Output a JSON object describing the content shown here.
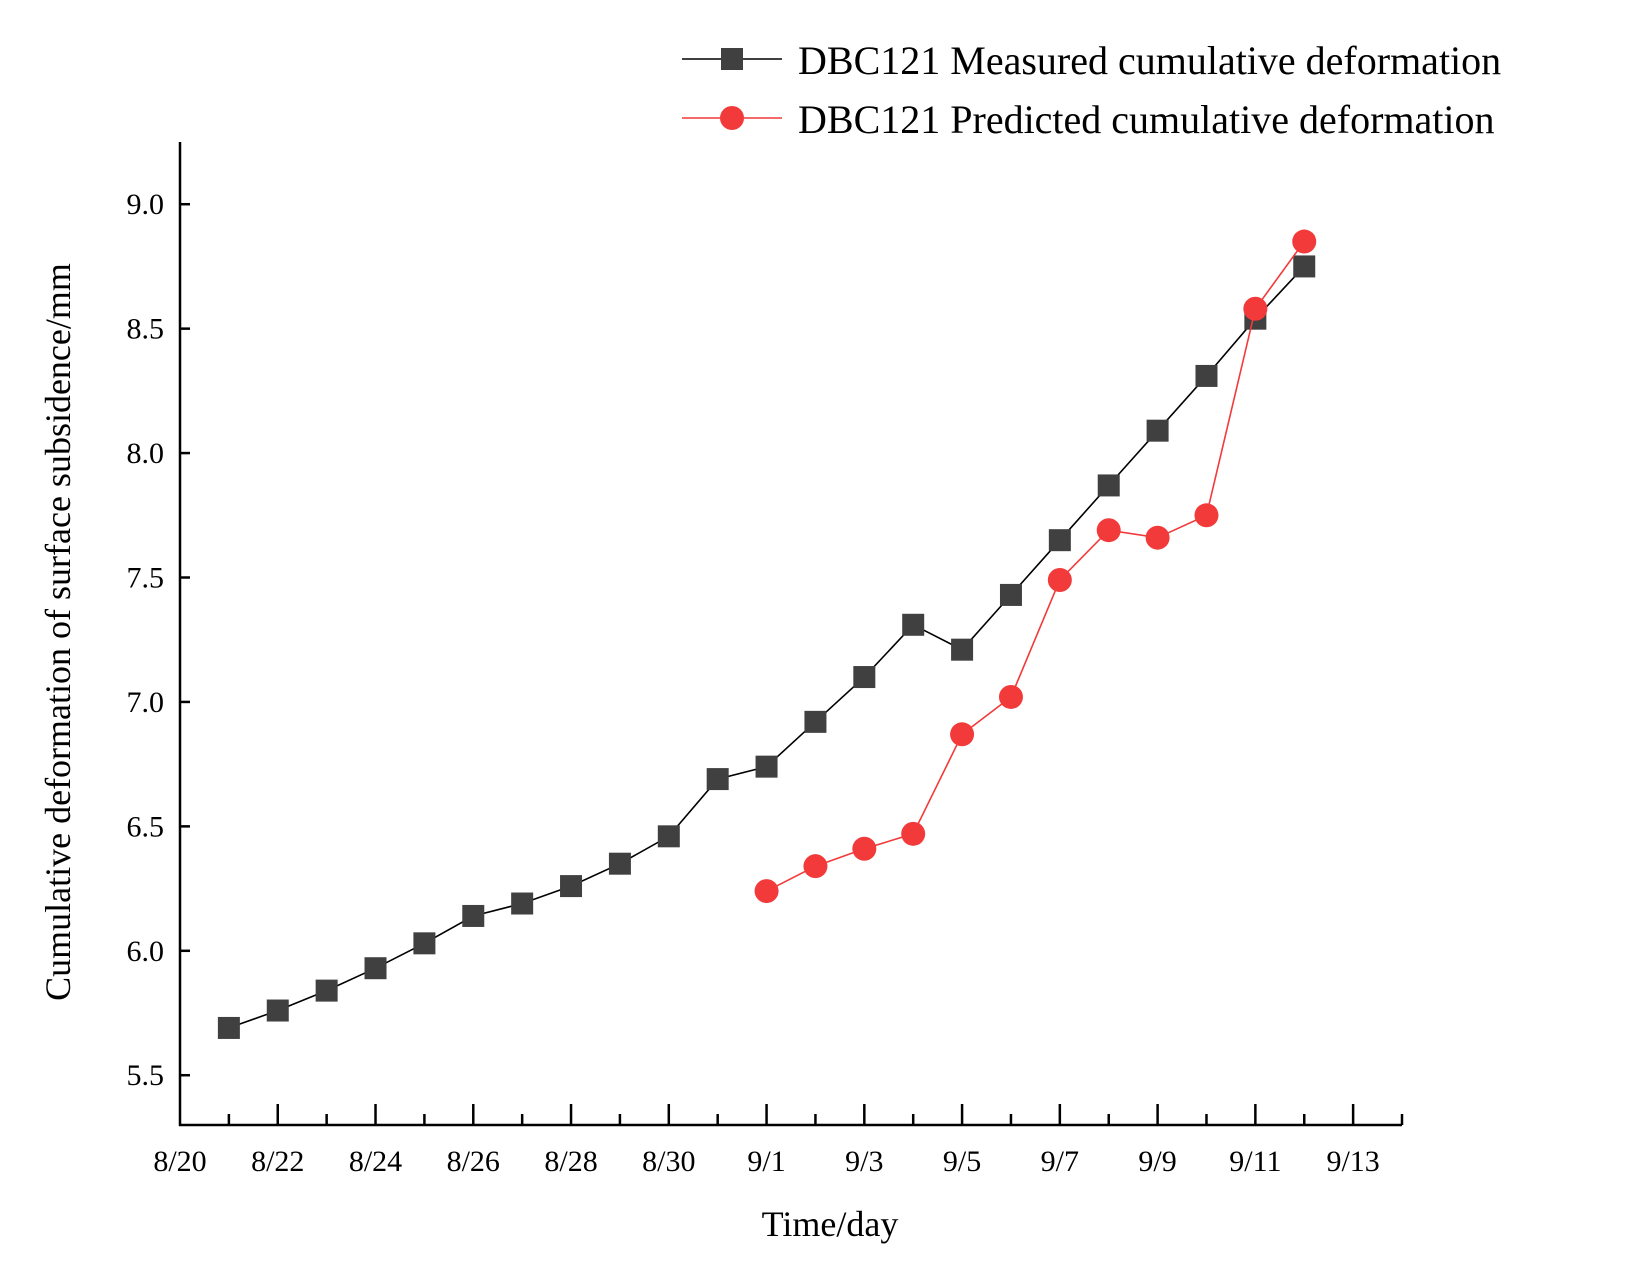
{
  "chart_data": {
    "type": "line",
    "title": "",
    "xlabel": "Time/day",
    "ylabel": "Cumulative deformation of surface subsidence/mm",
    "ylim": [
      5.3,
      9.25
    ],
    "yticks": [
      5.5,
      6.0,
      6.5,
      7.0,
      7.5,
      8.0,
      8.5,
      9.0
    ],
    "ytick_labels": [
      "5.5",
      "6.0",
      "6.5",
      "7.0",
      "7.5",
      "8.0",
      "8.5",
      "9.0"
    ],
    "xlim_day_index": [
      0,
      25
    ],
    "xticks_day_index": [
      0,
      2,
      4,
      6,
      8,
      10,
      12,
      14,
      16,
      18,
      20,
      22,
      24
    ],
    "xtick_labels": [
      "8/20",
      "8/22",
      "8/24",
      "8/26",
      "8/28",
      "8/30",
      "9/1",
      "9/3",
      "9/5",
      "9/7",
      "9/9",
      "9/11",
      "9/13"
    ],
    "legend_position": "top-right",
    "series": [
      {
        "name": "DBC121 Measured cumulative deformation",
        "marker": "square",
        "color": "#404040",
        "line_color": "#000000",
        "x_day_index": [
          1,
          2,
          3,
          4,
          5,
          6,
          7,
          8,
          9,
          10,
          11,
          12,
          13,
          14,
          15,
          16,
          17,
          18,
          19,
          20,
          21,
          22,
          23
        ],
        "dates": [
          "8/21",
          "8/22",
          "8/23",
          "8/24",
          "8/25",
          "8/26",
          "8/27",
          "8/28",
          "8/29",
          "8/30",
          "8/31",
          "9/1",
          "9/2",
          "9/3",
          "9/4",
          "9/5",
          "9/6",
          "9/7",
          "9/8",
          "9/9",
          "9/10",
          "9/11",
          "9/12"
        ],
        "values": [
          5.69,
          5.76,
          5.84,
          5.93,
          6.03,
          6.14,
          6.19,
          6.26,
          6.35,
          6.46,
          6.69,
          6.74,
          6.92,
          7.1,
          7.31,
          7.21,
          7.43,
          7.65,
          7.87,
          8.09,
          8.31,
          8.54,
          8.75
        ]
      },
      {
        "name": "DBC121 Predicted cumulative deformation",
        "marker": "circle",
        "color": "#f23a3a",
        "line_color": "#f23a3a",
        "x_day_index": [
          12,
          13,
          14,
          15,
          16,
          17,
          18,
          19,
          20,
          21,
          22,
          23
        ],
        "dates": [
          "9/1",
          "9/2",
          "9/3",
          "9/4",
          "9/5",
          "9/6",
          "9/7",
          "9/8",
          "9/9",
          "9/10",
          "9/11",
          "9/12"
        ],
        "values": [
          6.24,
          6.34,
          6.41,
          6.47,
          6.87,
          7.02,
          7.49,
          7.69,
          7.66,
          7.75,
          8.58,
          8.85
        ]
      }
    ]
  }
}
